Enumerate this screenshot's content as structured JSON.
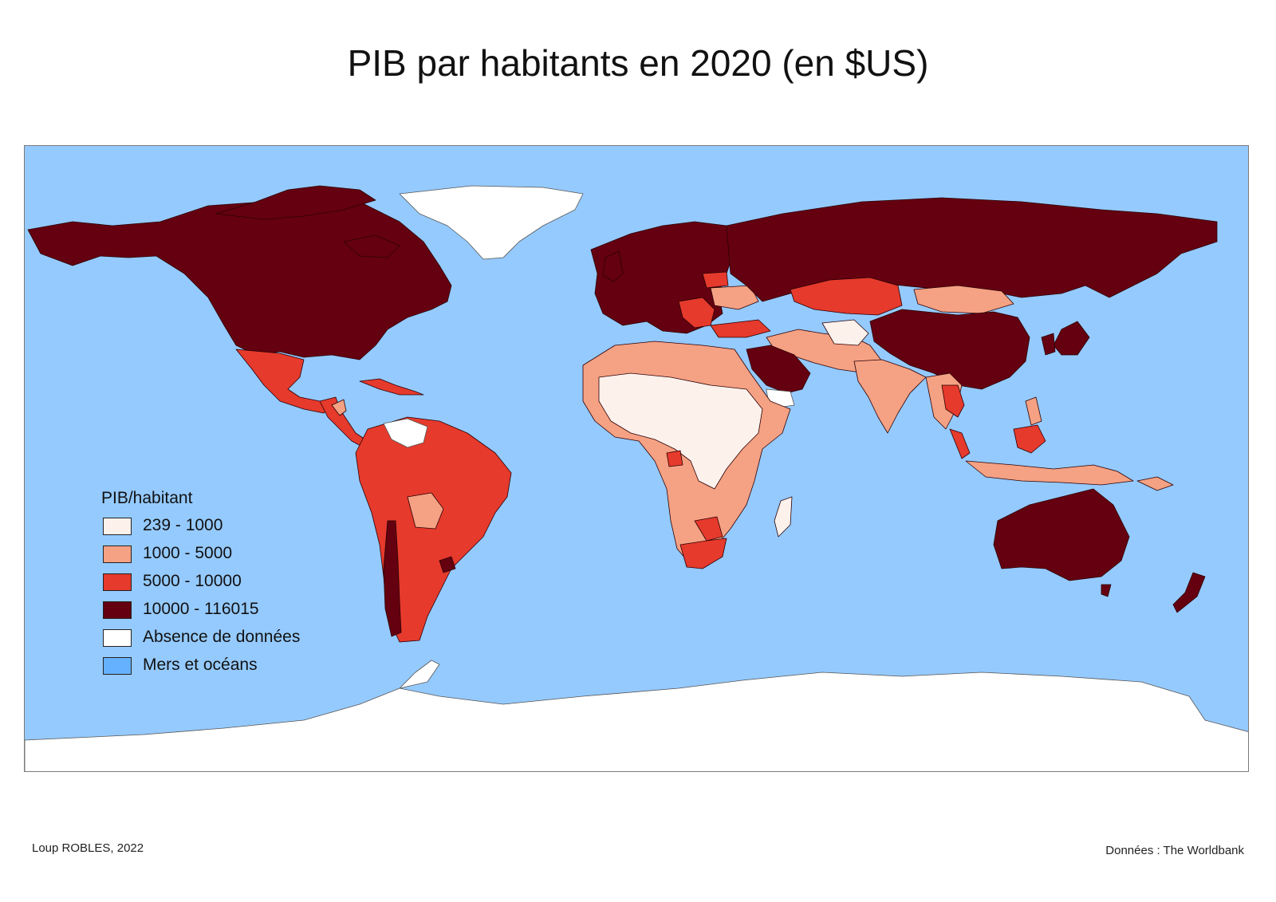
{
  "title": "PIB par habitants en 2020 (en $US)",
  "colors": {
    "ocean": "#95caff",
    "no_data": "#ffffff",
    "class1": "#fdf1ec",
    "class2": "#f5a183",
    "class3": "#e53a2c",
    "class4": "#650010",
    "legend_ocean": "#65b1ff"
  },
  "legend": {
    "title": "PIB/habitant",
    "items": [
      {
        "label": "239 - 1000",
        "color": "#fdf1ec"
      },
      {
        "label": "1000 - 5000",
        "color": "#f5a183"
      },
      {
        "label": "5000 - 10000",
        "color": "#e53a2c"
      },
      {
        "label": "10000 - 116015",
        "color": "#650010"
      },
      {
        "label": "Absence de données",
        "color": "#ffffff"
      },
      {
        "label": "Mers et océans",
        "color": "#65b1ff"
      }
    ]
  },
  "credit": "Loup ROBLES, 2022",
  "source": "Données : The Worldbank"
}
